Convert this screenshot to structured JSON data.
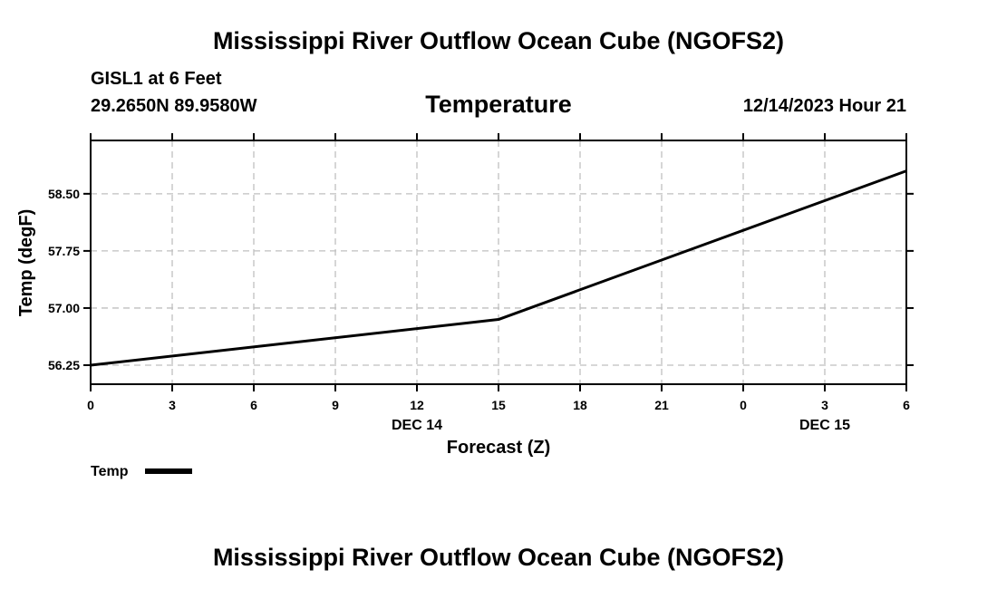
{
  "header": {
    "title": "Mississippi River Outflow Ocean Cube (NGOFS2)",
    "station": "GISL1 at 6 Feet",
    "coords": "29.2650N  89.9580W",
    "variable": "Temperature",
    "timestamp": "12/14/2023 Hour 21"
  },
  "footer": {
    "title": "Mississippi River Outflow Ocean Cube (NGOFS2)"
  },
  "chart_data": {
    "type": "line",
    "title": "Temperature",
    "xlabel": "Forecast (Z)",
    "ylabel": "Temp (degF)",
    "x_hours": [
      0,
      15,
      30
    ],
    "xlim": [
      0,
      30
    ],
    "ylim": [
      56.0,
      59.2
    ],
    "x_ticks": [
      {
        "hour": 0,
        "label": "0"
      },
      {
        "hour": 3,
        "label": "3"
      },
      {
        "hour": 6,
        "label": "6"
      },
      {
        "hour": 9,
        "label": "9"
      },
      {
        "hour": 12,
        "label": "12"
      },
      {
        "hour": 15,
        "label": "15"
      },
      {
        "hour": 18,
        "label": "18"
      },
      {
        "hour": 21,
        "label": "21"
      },
      {
        "hour": 24,
        "label": "0"
      },
      {
        "hour": 27,
        "label": "3"
      },
      {
        "hour": 30,
        "label": "6"
      }
    ],
    "date_labels": [
      {
        "hour": 12,
        "label": "DEC 14"
      },
      {
        "hour": 27,
        "label": "DEC 15"
      }
    ],
    "y_ticks": [
      {
        "value": 56.25,
        "label": "56.25"
      },
      {
        "value": 57.0,
        "label": "57.00"
      },
      {
        "value": 57.75,
        "label": "57.75"
      },
      {
        "value": 58.5,
        "label": "58.50"
      }
    ],
    "grid": true,
    "series": [
      {
        "name": "Temp",
        "x": [
          0,
          15,
          30
        ],
        "values": [
          56.25,
          56.85,
          58.8
        ]
      }
    ],
    "legend": {
      "position": "bottom-left",
      "entries": [
        "Temp"
      ]
    }
  }
}
